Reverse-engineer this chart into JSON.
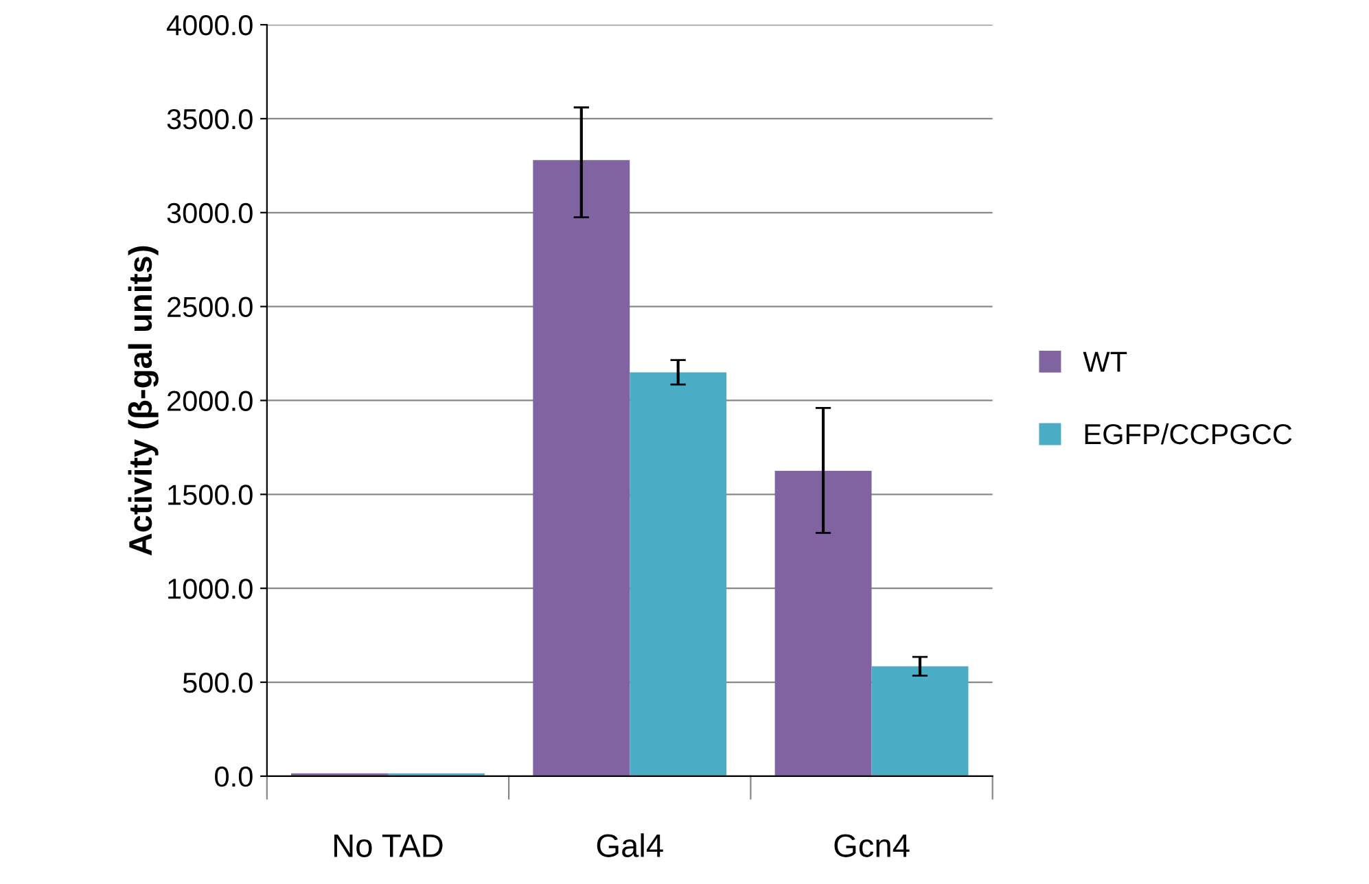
{
  "chart_data": {
    "type": "bar",
    "ylabel": "Activity (β-gal units)",
    "categories": [
      "No TAD",
      "Gal4",
      "Gcn4"
    ],
    "series": [
      {
        "name": "WT",
        "color": "#8064a2",
        "values": [
          15,
          3280,
          1625
        ],
        "errors": [
          null,
          [
            2975,
            3560
          ],
          [
            1295,
            1960
          ]
        ]
      },
      {
        "name": "EGFP/CCPGCC",
        "color": "#4bacc6",
        "values": [
          15,
          2150,
          585
        ],
        "errors": [
          null,
          [
            2085,
            2215
          ],
          [
            535,
            635
          ]
        ]
      }
    ],
    "ylim": [
      0,
      4000
    ],
    "yticks": [
      {
        "value": 0,
        "label": "0.0"
      },
      {
        "value": 500,
        "label": "500.0"
      },
      {
        "value": 1000,
        "label": "1000.0"
      },
      {
        "value": 1500,
        "label": "1500.0"
      },
      {
        "value": 2000,
        "label": "2000.0"
      },
      {
        "value": 2500,
        "label": "2500.0"
      },
      {
        "value": 3000,
        "label": "3000.0"
      },
      {
        "value": 3500,
        "label": "3500.0"
      },
      {
        "value": 4000,
        "label": "4000.0"
      }
    ],
    "grid": "y",
    "legend": "right"
  }
}
